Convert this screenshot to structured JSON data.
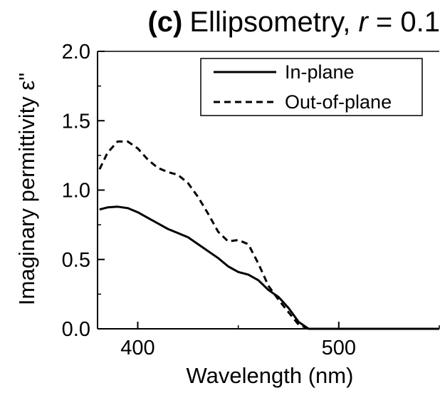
{
  "chart_data": {
    "type": "line",
    "title": {
      "panel": "(c)",
      "text": "Ellipsometry, ",
      "var": "r",
      "rest": " = 0.1"
    },
    "xlabel": "Wavelength (nm)",
    "ylabel": "Imaginary permittivity ε\"",
    "xlim": [
      380,
      550
    ],
    "ylim": [
      0,
      2.0
    ],
    "xticks": [
      400,
      500
    ],
    "xtick_labels": [
      "400",
      "500"
    ],
    "yticks": [
      0,
      0.5,
      1.0,
      1.5,
      2.0
    ],
    "ytick_labels": [
      "0.0",
      "0.5",
      "1.0",
      "1.5",
      "2.0"
    ],
    "grid": false,
    "legend_position": "top-right",
    "series": [
      {
        "name": "In-plane",
        "style": "solid",
        "color": "#000000",
        "x": [
          381,
          385,
          390,
          395,
          400,
          405,
          410,
          415,
          420,
          425,
          430,
          435,
          440,
          445,
          450,
          455,
          460,
          465,
          470,
          475,
          480,
          485,
          490,
          500,
          520,
          550
        ],
        "y": [
          0.86,
          0.875,
          0.88,
          0.87,
          0.84,
          0.8,
          0.76,
          0.72,
          0.69,
          0.66,
          0.61,
          0.56,
          0.51,
          0.45,
          0.41,
          0.39,
          0.35,
          0.28,
          0.23,
          0.15,
          0.05,
          0.0,
          0.0,
          0.0,
          0.0,
          0.0
        ]
      },
      {
        "name": "Out-of-plane",
        "style": "dashed",
        "color": "#000000",
        "x": [
          381,
          385,
          390,
          395,
          400,
          405,
          410,
          415,
          420,
          425,
          430,
          435,
          440,
          445,
          450,
          455,
          460,
          465,
          470,
          475,
          480,
          485,
          490,
          500,
          520,
          550
        ],
        "y": [
          1.15,
          1.27,
          1.35,
          1.35,
          1.3,
          1.22,
          1.16,
          1.13,
          1.11,
          1.05,
          0.95,
          0.83,
          0.7,
          0.63,
          0.64,
          0.61,
          0.47,
          0.31,
          0.21,
          0.12,
          0.03,
          0.0,
          0.0,
          0.0,
          0.0,
          0.0
        ]
      }
    ]
  }
}
